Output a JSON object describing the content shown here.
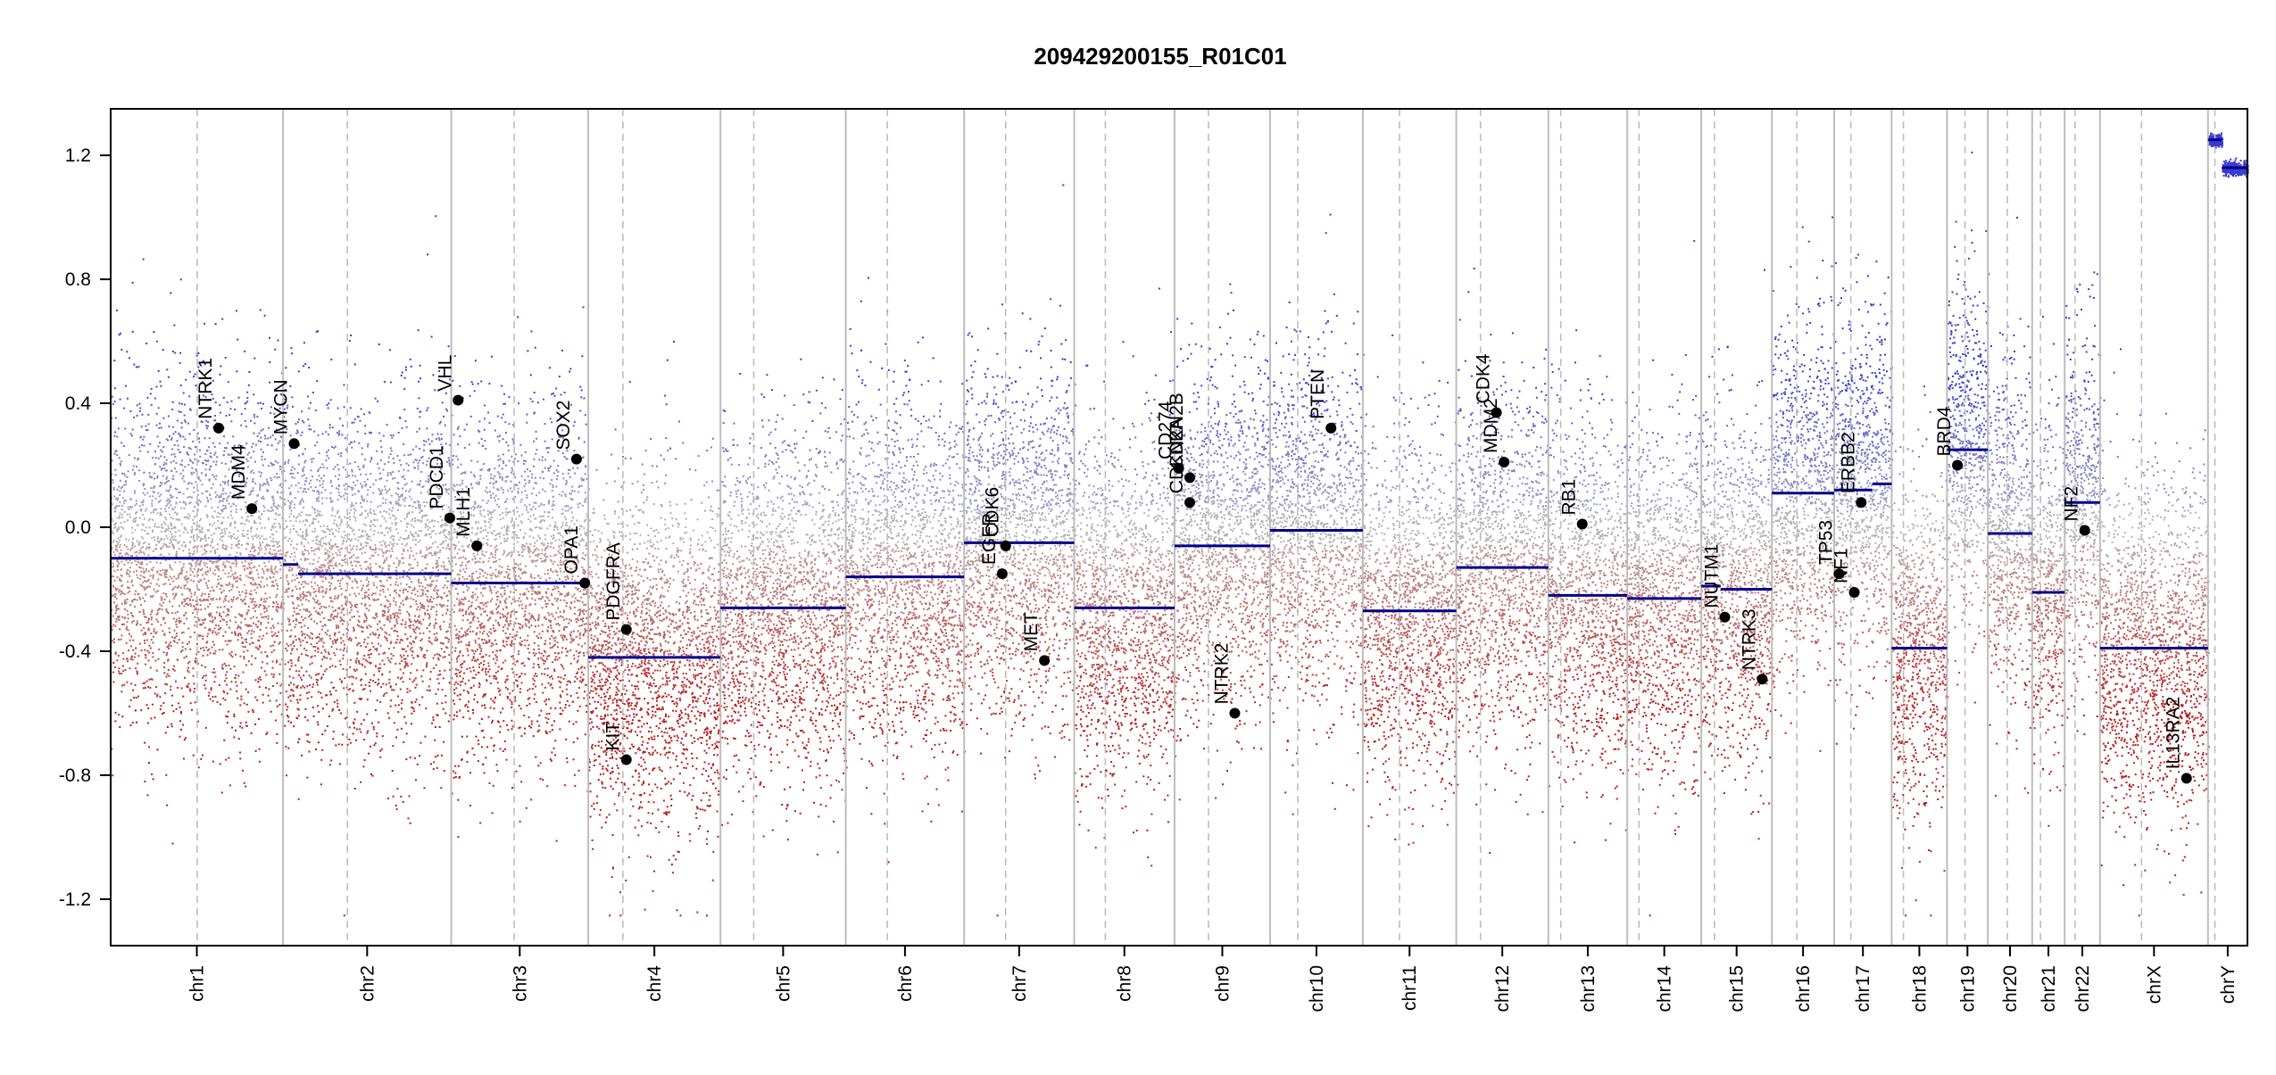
{
  "chart_data": {
    "type": "scatter",
    "title": "209429200155_R01C01",
    "xlabel": "",
    "ylabel": "",
    "ylim": [
      -1.35,
      1.35
    ],
    "grid": false,
    "y_ticks": [
      1.2,
      0.8,
      0.4,
      0.0,
      -0.4,
      -0.8,
      -1.2
    ],
    "y_tick_labels": [
      "1.2",
      "0.8",
      "0.4",
      "0.0",
      "-0.4",
      "-0.8",
      "-1.2"
    ],
    "x_scale": "genomic position (Mb, concatenated chromosomes)",
    "chromosomes": [
      {
        "name": "chr1",
        "length": 249,
        "centromere": 125
      },
      {
        "name": "chr2",
        "length": 243,
        "centromere": 93
      },
      {
        "name": "chr3",
        "length": 198,
        "centromere": 91
      },
      {
        "name": "chr4",
        "length": 191,
        "centromere": 50
      },
      {
        "name": "chr5",
        "length": 181,
        "centromere": 48
      },
      {
        "name": "chr6",
        "length": 171,
        "centromere": 60
      },
      {
        "name": "chr7",
        "length": 159,
        "centromere": 60
      },
      {
        "name": "chr8",
        "length": 145,
        "centromere": 45
      },
      {
        "name": "chr9",
        "length": 138,
        "centromere": 49
      },
      {
        "name": "chr10",
        "length": 134,
        "centromere": 40
      },
      {
        "name": "chr11",
        "length": 135,
        "centromere": 53
      },
      {
        "name": "chr12",
        "length": 133,
        "centromere": 35
      },
      {
        "name": "chr13",
        "length": 114,
        "centromere": 18
      },
      {
        "name": "chr14",
        "length": 107,
        "centromere": 17
      },
      {
        "name": "chr15",
        "length": 102,
        "centromere": 19
      },
      {
        "name": "chr16",
        "length": 90,
        "centromere": 36
      },
      {
        "name": "chr17",
        "length": 83,
        "centromere": 24
      },
      {
        "name": "chr18",
        "length": 80,
        "centromere": 17
      },
      {
        "name": "chr19",
        "length": 59,
        "centromere": 26
      },
      {
        "name": "chr20",
        "length": 64,
        "centromere": 28
      },
      {
        "name": "chr21",
        "length": 47,
        "centromere": 12
      },
      {
        "name": "chr22",
        "length": 51,
        "centromere": 15
      },
      {
        "name": "chrX",
        "length": 156,
        "centromere": 60
      },
      {
        "name": "chrY",
        "length": 57,
        "centromere": 10
      }
    ],
    "segments": [
      {
        "chr": "chr1",
        "start": 0,
        "end": 249,
        "value": -0.1
      },
      {
        "chr": "chr2",
        "start": 0,
        "end": 22,
        "value": -0.12
      },
      {
        "chr": "chr2",
        "start": 22,
        "end": 243,
        "value": -0.15
      },
      {
        "chr": "chr3",
        "start": 0,
        "end": 198,
        "value": -0.18
      },
      {
        "chr": "chr4",
        "start": 0,
        "end": 191,
        "value": -0.42
      },
      {
        "chr": "chr5",
        "start": 0,
        "end": 181,
        "value": -0.26
      },
      {
        "chr": "chr6",
        "start": 0,
        "end": 171,
        "value": -0.16
      },
      {
        "chr": "chr7",
        "start": 0,
        "end": 159,
        "value": -0.05
      },
      {
        "chr": "chr8",
        "start": 0,
        "end": 145,
        "value": -0.26
      },
      {
        "chr": "chr9",
        "start": 0,
        "end": 138,
        "value": -0.06
      },
      {
        "chr": "chr10",
        "start": 0,
        "end": 134,
        "value": -0.01
      },
      {
        "chr": "chr11",
        "start": 0,
        "end": 135,
        "value": -0.27
      },
      {
        "chr": "chr12",
        "start": 0,
        "end": 133,
        "value": -0.13
      },
      {
        "chr": "chr13",
        "start": 0,
        "end": 114,
        "value": -0.22
      },
      {
        "chr": "chr14",
        "start": 0,
        "end": 107,
        "value": -0.23
      },
      {
        "chr": "chr15",
        "start": 0,
        "end": 28,
        "value": -0.19
      },
      {
        "chr": "chr15",
        "start": 28,
        "end": 102,
        "value": -0.2
      },
      {
        "chr": "chr16",
        "start": 0,
        "end": 90,
        "value": 0.11
      },
      {
        "chr": "chr17",
        "start": 0,
        "end": 55,
        "value": 0.12
      },
      {
        "chr": "chr17",
        "start": 55,
        "end": 83,
        "value": 0.14
      },
      {
        "chr": "chr18",
        "start": 0,
        "end": 80,
        "value": -0.39
      },
      {
        "chr": "chr19",
        "start": 0,
        "end": 59,
        "value": 0.25
      },
      {
        "chr": "chr20",
        "start": 0,
        "end": 64,
        "value": -0.02
      },
      {
        "chr": "chr21",
        "start": 0,
        "end": 47,
        "value": -0.21
      },
      {
        "chr": "chr22",
        "start": 0,
        "end": 51,
        "value": 0.08
      },
      {
        "chr": "chrX",
        "start": 0,
        "end": 156,
        "value": -0.39
      },
      {
        "chr": "chrY",
        "start": 0,
        "end": 20,
        "value": 1.25
      },
      {
        "chr": "chrY",
        "start": 20,
        "end": 57,
        "value": 1.16
      }
    ],
    "genes": [
      {
        "name": "NTRK1",
        "chr": "chr1",
        "pos": 156,
        "value": 0.32
      },
      {
        "name": "MDM4",
        "chr": "chr1",
        "pos": 204,
        "value": 0.06
      },
      {
        "name": "MYCN",
        "chr": "chr2",
        "pos": 16,
        "value": 0.27
      },
      {
        "name": "PDCD1",
        "chr": "chr2",
        "pos": 241,
        "value": 0.03
      },
      {
        "name": "VHL",
        "chr": "chr3",
        "pos": 10,
        "value": 0.41
      },
      {
        "name": "MLH1",
        "chr": "chr3",
        "pos": 37,
        "value": -0.06
      },
      {
        "name": "SOX2",
        "chr": "chr3",
        "pos": 181,
        "value": 0.22
      },
      {
        "name": "OPA1",
        "chr": "chr3",
        "pos": 193,
        "value": -0.18
      },
      {
        "name": "PDGFRA",
        "chr": "chr4",
        "pos": 55,
        "value": -0.33
      },
      {
        "name": "KIT",
        "chr": "chr4",
        "pos": 55,
        "value": -0.75
      },
      {
        "name": "EGFR",
        "chr": "chr7",
        "pos": 55,
        "value": -0.15
      },
      {
        "name": "CDK6",
        "chr": "chr7",
        "pos": 60,
        "value": -0.06
      },
      {
        "name": "MET",
        "chr": "chr7",
        "pos": 116,
        "value": -0.43
      },
      {
        "name": "CD274",
        "chr": "chr9",
        "pos": 6,
        "value": 0.19
      },
      {
        "name": "CDKN2A",
        "chr": "chr9",
        "pos": 22,
        "value": 0.08
      },
      {
        "name": "CDKN2B",
        "chr": "chr9",
        "pos": 22,
        "value": 0.16
      },
      {
        "name": "NTRK2",
        "chr": "chr9",
        "pos": 87,
        "value": -0.6
      },
      {
        "name": "PTEN",
        "chr": "chr10",
        "pos": 88,
        "value": 0.32
      },
      {
        "name": "CDK4",
        "chr": "chr12",
        "pos": 58,
        "value": 0.37
      },
      {
        "name": "MDM2",
        "chr": "chr12",
        "pos": 69,
        "value": 0.21
      },
      {
        "name": "RB1",
        "chr": "chr13",
        "pos": 49,
        "value": 0.01
      },
      {
        "name": "NUTM1",
        "chr": "chr15",
        "pos": 34,
        "value": -0.29
      },
      {
        "name": "NTRK3",
        "chr": "chr15",
        "pos": 88,
        "value": -0.49
      },
      {
        "name": "TP53",
        "chr": "chr17",
        "pos": 7,
        "value": -0.15
      },
      {
        "name": "NF1",
        "chr": "chr17",
        "pos": 29,
        "value": -0.21
      },
      {
        "name": "ERBB2",
        "chr": "chr17",
        "pos": 39,
        "value": 0.08
      },
      {
        "name": "BRD4",
        "chr": "chr19",
        "pos": 15,
        "value": 0.2
      },
      {
        "name": "NF2",
        "chr": "chr22",
        "pos": 29,
        "value": -0.01
      },
      {
        "name": "IL13RA2",
        "chr": "chrX",
        "pos": 125,
        "value": -0.81
      }
    ],
    "colors": {
      "gain_probe": "#3a3acf",
      "loss_probe": "#b81c1c",
      "neutral_probe": "#b0b0b0",
      "segment": "#00008b",
      "chr_boundary": "#bdbdbd",
      "centromere": "#bdbdbd",
      "gene_marker": "#000000"
    }
  }
}
